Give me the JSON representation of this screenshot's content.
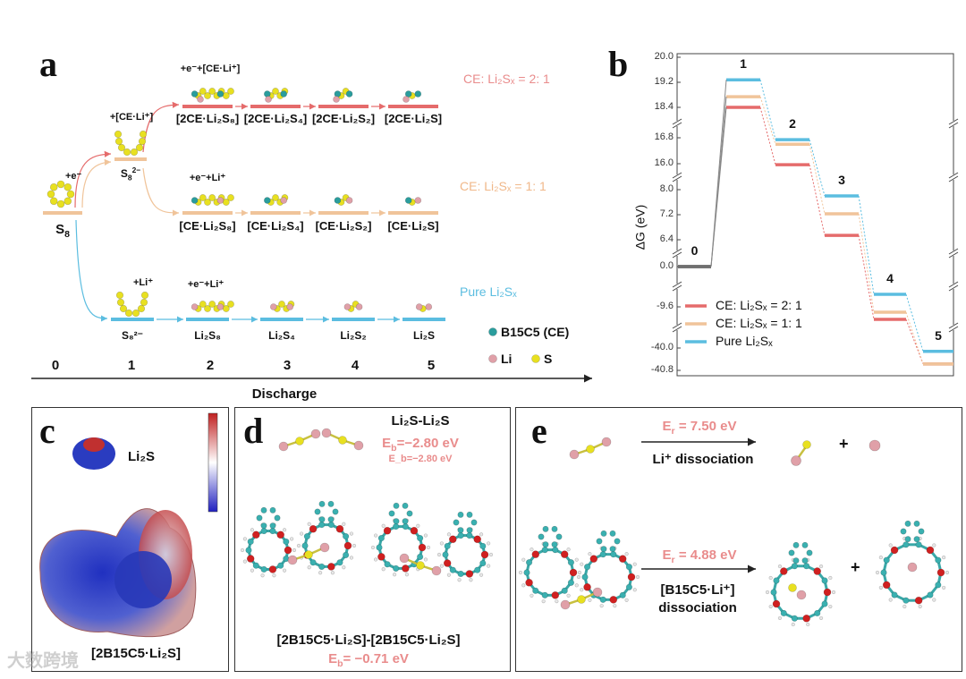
{
  "colors": {
    "ce21": "#e56b6b",
    "ce11": "#f0c49a",
    "pure": "#5bbde0",
    "ground": "#707070",
    "S": "#e8e020",
    "Li": "#e0a0a8",
    "CE": "#2a9d9d",
    "O": "#d02020"
  },
  "panel_a": {
    "label": "a",
    "s8": {
      "label": "S",
      "sub": "8"
    },
    "s8_dianion": {
      "label": "S",
      "sub": "8",
      "sup": "2−"
    },
    "step_e": "+e⁻",
    "step_ce_li": "+[CE·Li⁺]",
    "top_reagent": "+e⁻+[CE·Li⁺]",
    "mid_reagent": "+e⁻+Li⁺",
    "bot_li": "+Li⁺",
    "bot_reagent": "+e⁻+Li⁺",
    "top_row": [
      "[2CE·Li₂S₈]",
      "[2CE·Li₂S₄]",
      "[2CE·Li₂S₂]",
      "[2CE·Li₂S]"
    ],
    "mid_row": [
      "[CE·Li₂S₈]",
      "[CE·Li₂S₄]",
      "[CE·Li₂S₂]",
      "[CE·Li₂S]"
    ],
    "bot_row": [
      "S₈²⁻",
      "Li₂S₈",
      "Li₂S₄",
      "Li₂S₂",
      "Li₂S"
    ],
    "series_labels": [
      "CE: Li₂Sₓ = 2: 1",
      "CE: Li₂Sₓ = 1: 1",
      "Pure Li₂Sₓ"
    ],
    "steps": [
      "0",
      "1",
      "2",
      "3",
      "4",
      "5"
    ],
    "axis_label": "Discharge",
    "legend": {
      "ce": "B15C5 (CE)",
      "li": "Li",
      "s": "S"
    }
  },
  "chart_data": {
    "type": "line",
    "title": "",
    "panel_label": "b",
    "xlabel": "",
    "ylabel": "ΔG (eV)",
    "broken_axis": true,
    "axis_segments": [
      [
        20.0,
        18.4
      ],
      [
        16.8,
        16.0
      ],
      [
        8.0,
        6.4
      ],
      [
        0.0,
        0.0
      ],
      [
        -9.6,
        -9.6
      ],
      [
        -40.0,
        -40.8
      ]
    ],
    "yticks": [
      "20.0",
      "19.2",
      "18.4",
      "16.8",
      "16.0",
      "8.0",
      "7.2",
      "6.4",
      "0.0",
      "-9.6",
      "-40.0",
      "-40.8"
    ],
    "categories": [
      "0",
      "1",
      "2",
      "3",
      "4",
      "5"
    ],
    "series": [
      {
        "name": "CE: Li₂Sₓ = 2: 1",
        "color": "#e56b6b",
        "values": [
          0.0,
          18.4,
          15.97,
          6.54,
          -10.0,
          -40.57
        ]
      },
      {
        "name": "CE: Li₂Sₓ = 1: 1",
        "color": "#f0c49a",
        "values": [
          0.0,
          18.74,
          16.6,
          7.23,
          -9.77,
          -40.57
        ]
      },
      {
        "name": "Pure Li₂Sₓ",
        "color": "#5bbde0",
        "values": [
          0.0,
          19.28,
          16.74,
          7.8,
          -9.2,
          -40.12
        ]
      }
    ],
    "legend_position": "bottom-left",
    "grid": false
  },
  "panel_c": {
    "label": "c",
    "molecule": "Li₂S",
    "complex": "[2B15C5·Li₂S]"
  },
  "panel_d": {
    "label": "d",
    "title": "Li₂S-Li₂S",
    "eb_top": "E_b=−2.80 eV",
    "eb_top_main": "E",
    "eb_top_sub": "b",
    "eb_top_val": "=−2.80 eV",
    "complex": "[2B15C5·Li₂S]-[2B15C5·Li₂S]",
    "eb_bot_main": "E",
    "eb_bot_sub": "b",
    "eb_bot_val": "= −0.71 eV"
  },
  "panel_e": {
    "label": "e",
    "er1_main": "E",
    "er1_sub": "r",
    "er1_val": " = 7.50 eV",
    "reaction1": "Li⁺ dissociation",
    "er2_main": "E",
    "er2_sub": "r",
    "er2_val": " = 4.88 eV",
    "reaction2_line1": "[B15C5·Li⁺]",
    "reaction2_line2": "dissociation",
    "plus": "+"
  },
  "watermark": "大数跨境"
}
